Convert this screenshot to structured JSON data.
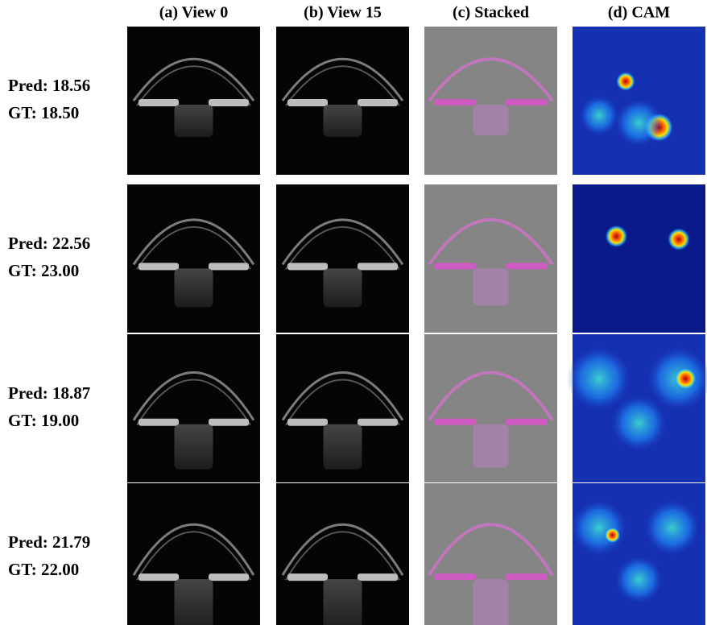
{
  "columns": [
    "(a) View 0",
    "(b) View 15",
    "(c) Stacked",
    "(d) CAM"
  ],
  "rows": [
    {
      "pred": "Pred: 18.56",
      "gt": "GT: 18.50"
    },
    {
      "pred": "Pred: 22.56",
      "gt": "GT: 23.00"
    },
    {
      "pred": "Pred: 18.87",
      "gt": "GT: 19.00"
    },
    {
      "pred": "Pred: 21.79",
      "gt": "GT: 22.00"
    }
  ]
}
